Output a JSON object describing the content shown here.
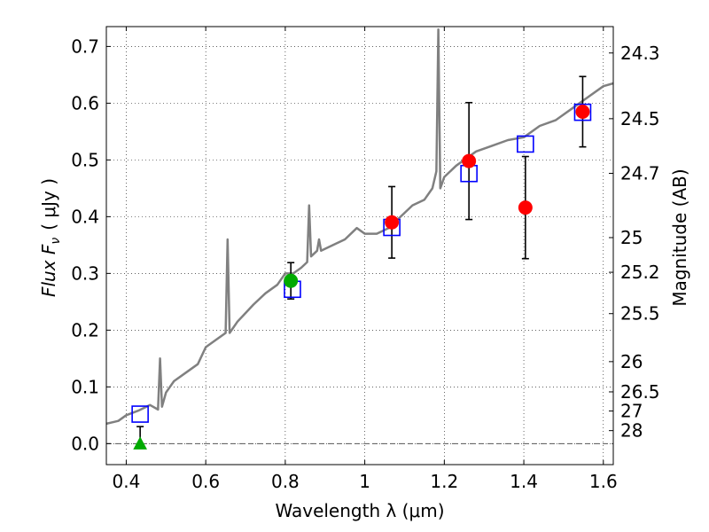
{
  "chart_data": {
    "type": "scatter",
    "xlabel": "Wavelength  λ (μm)",
    "ylabel": "Flux  F",
    "ylabel_sub": "ν",
    "ylabel_unit": "( μJy )",
    "y2label": "Magnitude (AB)",
    "xlim": [
      0.35,
      1.625
    ],
    "ylim": [
      -0.037,
      0.735
    ],
    "grid": true,
    "x_ticks": [
      0.4,
      0.6,
      0.8,
      1.0,
      1.2,
      1.4,
      1.6
    ],
    "x_tick_labels": [
      "0.4",
      "0.6",
      "0.8",
      "1",
      "1.2",
      "1.4",
      "1.6"
    ],
    "y_ticks": [
      0.0,
      0.1,
      0.2,
      0.3,
      0.4,
      0.5,
      0.6,
      0.7
    ],
    "y_tick_labels": [
      "0.0",
      "0.1",
      "0.2",
      "0.3",
      "0.4",
      "0.5",
      "0.6",
      "0.7"
    ],
    "right_axis_ticks": [
      {
        "label": "24.3",
        "flux": 0.6885
      },
      {
        "label": "24.5",
        "flux": 0.5727
      },
      {
        "label": "24.7",
        "flux": 0.4764
      },
      {
        "label": "25",
        "flux": 0.3631
      },
      {
        "label": "25.2",
        "flux": 0.302
      },
      {
        "label": "25.5",
        "flux": 0.2291
      },
      {
        "label": "26",
        "flux": 0.1445
      },
      {
        "label": "26.5",
        "flux": 0.0912
      },
      {
        "label": "27",
        "flux": 0.0575
      },
      {
        "label": "28",
        "flux": 0.0229
      }
    ],
    "series": [
      {
        "kind": "spectrum",
        "color": "#808080",
        "x": [
          0.35,
          0.38,
          0.4,
          0.43,
          0.46,
          0.48,
          0.485,
          0.49,
          0.5,
          0.52,
          0.55,
          0.58,
          0.6,
          0.62,
          0.65,
          0.655,
          0.66,
          0.68,
          0.7,
          0.72,
          0.75,
          0.78,
          0.8,
          0.82,
          0.84,
          0.855,
          0.86,
          0.865,
          0.88,
          0.885,
          0.89,
          0.92,
          0.95,
          0.98,
          1.0,
          1.03,
          1.06,
          1.09,
          1.12,
          1.15,
          1.17,
          1.18,
          1.185,
          1.19,
          1.2,
          1.23,
          1.25,
          1.28,
          1.32,
          1.36,
          1.4,
          1.44,
          1.48,
          1.52,
          1.56,
          1.6,
          1.625
        ],
        "y": [
          0.035,
          0.04,
          0.05,
          0.058,
          0.068,
          0.06,
          0.15,
          0.065,
          0.09,
          0.11,
          0.125,
          0.14,
          0.17,
          0.18,
          0.195,
          0.36,
          0.195,
          0.215,
          0.23,
          0.245,
          0.265,
          0.28,
          0.3,
          0.3,
          0.31,
          0.32,
          0.42,
          0.33,
          0.34,
          0.36,
          0.34,
          0.35,
          0.36,
          0.38,
          0.37,
          0.37,
          0.38,
          0.4,
          0.42,
          0.43,
          0.45,
          0.48,
          0.73,
          0.45,
          0.47,
          0.49,
          0.5,
          0.515,
          0.525,
          0.535,
          0.54,
          0.56,
          0.57,
          0.59,
          0.61,
          0.63,
          0.635
        ]
      },
      {
        "kind": "model_points",
        "marker": "open-square",
        "color": "#0000ff",
        "x": [
          0.435,
          0.818,
          1.068,
          1.262,
          1.404,
          1.548
        ],
        "y": [
          0.052,
          0.272,
          0.381,
          0.476,
          0.528,
          0.584
        ]
      },
      {
        "kind": "observed",
        "marker": "filled-circle",
        "color": "#ff0000",
        "x": [
          1.068,
          1.262,
          1.404,
          1.548
        ],
        "y": [
          0.39,
          0.498,
          0.416,
          0.585
        ],
        "yerr": [
          0.063,
          0.103,
          0.09,
          0.062
        ]
      },
      {
        "kind": "observed",
        "marker": "filled-circle",
        "color": "#00aa00",
        "x": [
          0.814
        ],
        "y": [
          0.287
        ],
        "yerr": [
          0.032
        ]
      },
      {
        "kind": "upper_limit",
        "marker": "filled-triangle",
        "color": "#00aa00",
        "x": [
          0.435
        ],
        "y": [
          0.0
        ],
        "yerr_up": [
          0.03
        ]
      }
    ],
    "hline": {
      "y": 0.0,
      "style": "dashed",
      "color": "#555555"
    }
  }
}
